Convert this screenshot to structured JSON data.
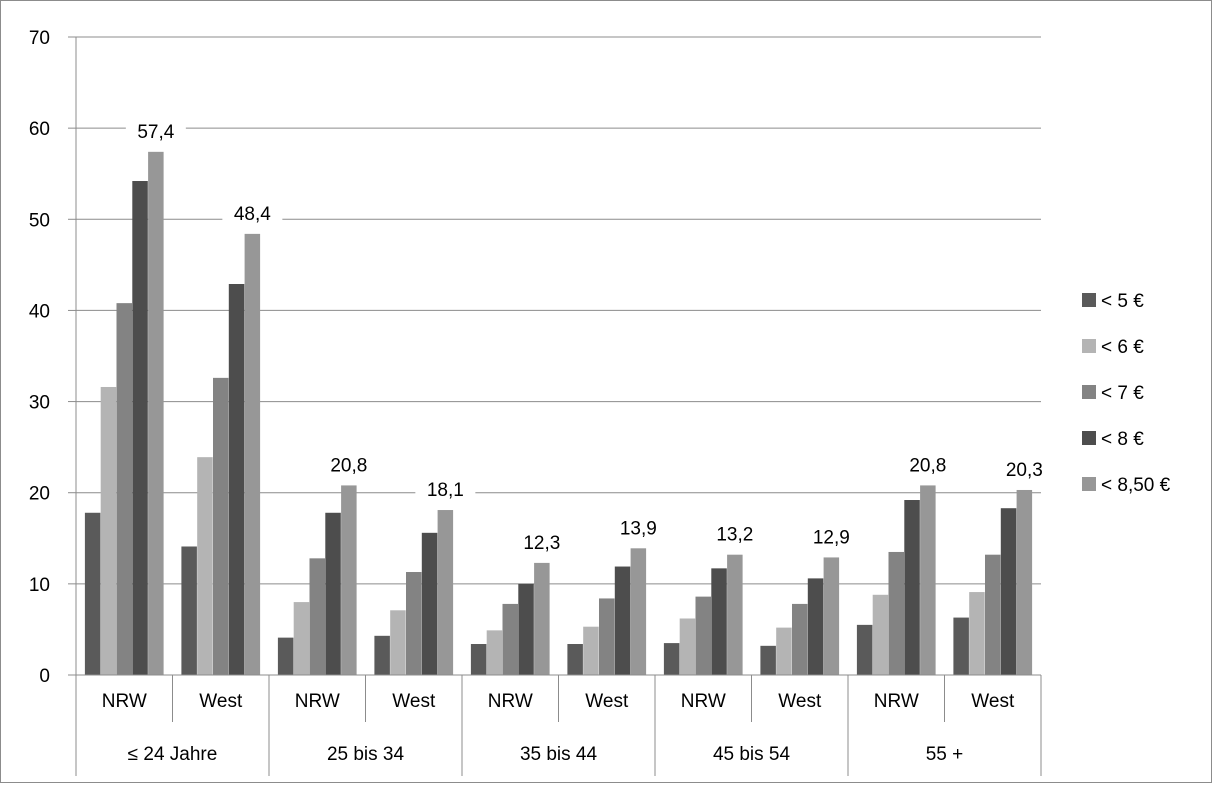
{
  "chart_data": {
    "type": "bar",
    "groups": [
      "≤ 24 Jahre",
      "25 bis 34",
      "35 bis 44",
      "45 bis 54",
      "55 +"
    ],
    "subgroups": [
      "NRW",
      "West"
    ],
    "categories": [
      "≤ 24 Jahre / NRW",
      "≤ 24 Jahre / West",
      "25 bis 34 / NRW",
      "25 bis 34 / West",
      "35 bis 44 / NRW",
      "35 bis 44 / West",
      "45 bis 54 / NRW",
      "45 bis 54 / West",
      "55 + / NRW",
      "55 + / West"
    ],
    "series": [
      {
        "name": "< 5 €",
        "color": "#5a5a5a",
        "values": [
          17.8,
          14.1,
          4.1,
          4.3,
          3.4,
          3.4,
          3.5,
          3.2,
          5.5,
          6.3
        ]
      },
      {
        "name": "< 6 €",
        "color": "#b4b4b4",
        "values": [
          31.6,
          23.9,
          8.0,
          7.1,
          4.9,
          5.3,
          6.2,
          5.2,
          8.8,
          9.1
        ]
      },
      {
        "name": "< 7 €",
        "color": "#838383",
        "values": [
          40.8,
          32.6,
          12.8,
          11.3,
          7.8,
          8.4,
          8.6,
          7.8,
          13.5,
          13.2
        ]
      },
      {
        "name": "< 8 €",
        "color": "#4d4d4d",
        "values": [
          54.2,
          42.9,
          17.8,
          15.6,
          10.0,
          11.9,
          11.7,
          10.6,
          19.2,
          18.3
        ]
      },
      {
        "name": "< 8,50 €",
        "color": "#979797",
        "values": [
          57.4,
          48.4,
          20.8,
          18.1,
          12.3,
          13.9,
          13.2,
          12.9,
          20.8,
          20.3
        ]
      }
    ],
    "data_labels": [
      "57,4",
      "48,4",
      "20,8",
      "18,1",
      "12,3",
      "13,9",
      "13,2",
      "12,9",
      "20,8",
      "20,3"
    ],
    "ylim": [
      0,
      70
    ],
    "yticks": [
      "0",
      "10",
      "20",
      "30",
      "40",
      "50",
      "60",
      "70"
    ],
    "grid": true,
    "legend_position": "right",
    "title": "",
    "xlabel": "",
    "ylabel": ""
  }
}
